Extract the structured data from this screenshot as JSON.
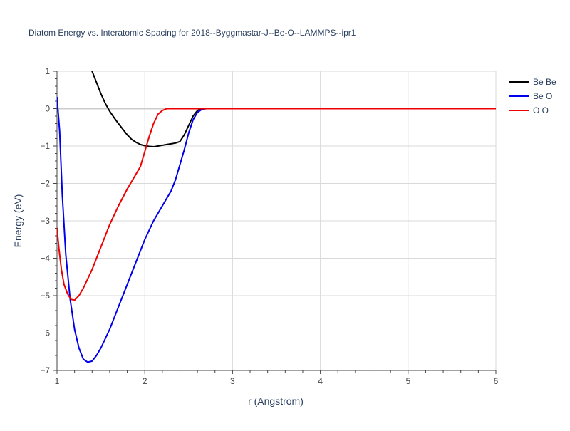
{
  "chart_data": {
    "type": "line",
    "title": "Diatom Energy vs. Interatomic Spacing for 2018--Byggmastar-J--Be-O--LAMMPS--ipr1",
    "xlabel": "r (Angstrom)",
    "ylabel": "Energy (eV)",
    "xlim": [
      1,
      6
    ],
    "ylim": [
      -7,
      1
    ],
    "x_ticks": [
      "1",
      "2",
      "3",
      "4",
      "5",
      "6"
    ],
    "y_ticks": [
      "1",
      "0",
      "−1",
      "−2",
      "−3",
      "−4",
      "−5",
      "−6",
      "−7"
    ],
    "grid": true,
    "legend_position": "top-right",
    "series": [
      {
        "name": "Be Be",
        "color": "#000000",
        "x": [
          1.4,
          1.45,
          1.5,
          1.55,
          1.6,
          1.65,
          1.7,
          1.75,
          1.8,
          1.85,
          1.9,
          1.95,
          2.0,
          2.05,
          2.1,
          2.15,
          2.2,
          2.25,
          2.3,
          2.35,
          2.4,
          2.45,
          2.5,
          2.55,
          2.6,
          2.65,
          2.7,
          2.75,
          3.0,
          4.0,
          5.0,
          6.0
        ],
        "values": [
          1.0,
          0.7,
          0.4,
          0.14,
          -0.07,
          -0.24,
          -0.4,
          -0.55,
          -0.7,
          -0.82,
          -0.9,
          -0.96,
          -0.99,
          -1.01,
          -1.02,
          -1.0,
          -0.98,
          -0.96,
          -0.94,
          -0.92,
          -0.88,
          -0.7,
          -0.45,
          -0.2,
          -0.05,
          0.0,
          0.0,
          0.0,
          0.0,
          0.0,
          0.0,
          0.0
        ]
      },
      {
        "name": "Be O",
        "color": "#0000ee",
        "x": [
          1.0,
          1.03,
          1.06,
          1.1,
          1.15,
          1.2,
          1.25,
          1.3,
          1.35,
          1.4,
          1.45,
          1.5,
          1.55,
          1.6,
          1.7,
          1.8,
          1.9,
          2.0,
          2.1,
          2.2,
          2.3,
          2.35,
          2.4,
          2.45,
          2.5,
          2.55,
          2.6,
          2.65,
          2.7,
          2.75,
          3.0,
          4.0,
          5.0,
          6.0
        ],
        "values": [
          0.3,
          -0.6,
          -2.3,
          -3.9,
          -5.1,
          -5.9,
          -6.4,
          -6.7,
          -6.78,
          -6.75,
          -6.6,
          -6.4,
          -6.15,
          -5.9,
          -5.3,
          -4.7,
          -4.1,
          -3.5,
          -3.0,
          -2.6,
          -2.2,
          -1.9,
          -1.5,
          -1.1,
          -0.65,
          -0.3,
          -0.1,
          -0.02,
          0.0,
          0.0,
          0.0,
          0.0,
          0.0,
          0.0
        ]
      },
      {
        "name": "O O",
        "color": "#ee0000",
        "x": [
          1.0,
          1.02,
          1.05,
          1.08,
          1.12,
          1.16,
          1.2,
          1.25,
          1.3,
          1.35,
          1.4,
          1.5,
          1.6,
          1.7,
          1.8,
          1.9,
          1.95,
          2.0,
          2.05,
          2.1,
          2.15,
          2.2,
          2.25,
          2.3,
          2.4,
          2.5,
          2.7,
          3.0,
          4.0,
          5.0,
          6.0
        ],
        "values": [
          -3.2,
          -3.7,
          -4.3,
          -4.7,
          -4.95,
          -5.1,
          -5.12,
          -5.0,
          -4.8,
          -4.55,
          -4.3,
          -3.7,
          -3.1,
          -2.6,
          -2.15,
          -1.75,
          -1.55,
          -1.15,
          -0.75,
          -0.4,
          -0.15,
          -0.05,
          0.0,
          0.0,
          0.0,
          0.0,
          0.0,
          0.0,
          0.0,
          0.0,
          0.0
        ]
      }
    ]
  }
}
